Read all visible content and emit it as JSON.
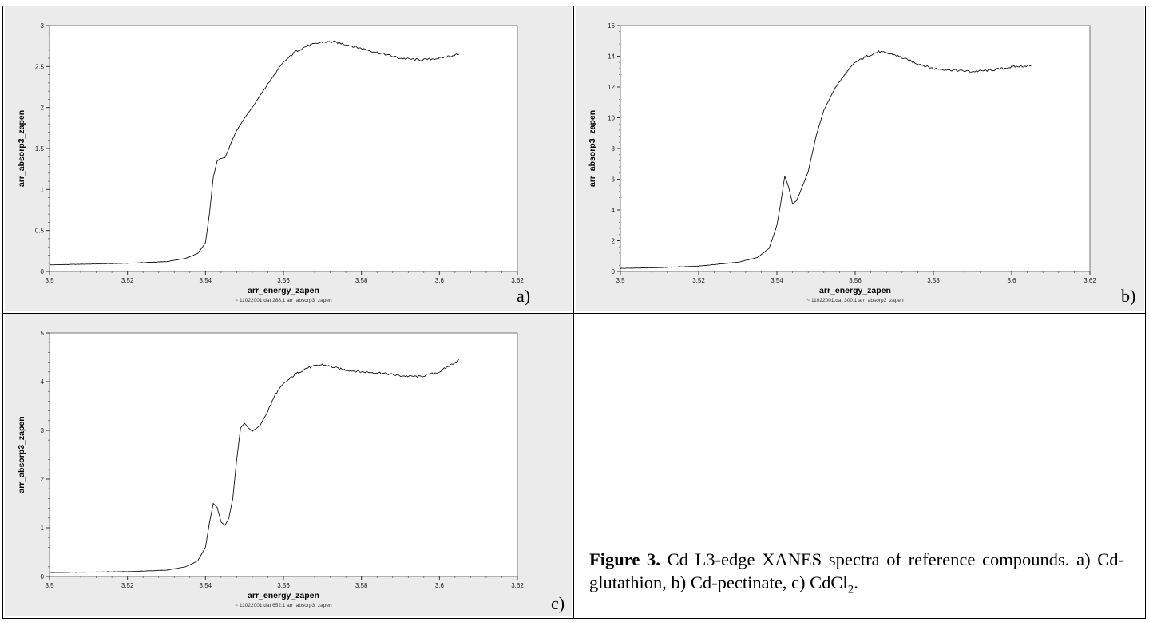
{
  "figure": {
    "caption_label": "Figure 3.",
    "caption_text_1": " Cd L3-edge XANES spectra of reference compounds. a) Cd-glutathion, b) Cd-pectinate, c) CdCl",
    "caption_subscript": "2",
    "caption_text_2": "."
  },
  "colors": {
    "plot_bg": "#ffffff",
    "frame_bg": "#ebebeb",
    "line": "#111111",
    "axis": "#777777"
  },
  "chart_data": [
    {
      "panel": "a)",
      "type": "line",
      "xlabel": "arr_energy_zapen",
      "ylabel": "arr_absorp3_zapen",
      "legend": "~ 11022001.dat 288.1 arr_absorp3_zapen",
      "xlim": [
        3.5,
        3.62
      ],
      "ylim": [
        0,
        3
      ],
      "xticks": [
        3.5,
        3.52,
        3.54,
        3.56,
        3.58,
        3.6,
        3.62
      ],
      "xtick_labels": [
        "3.5",
        "3.52",
        "3.54",
        "3.56",
        "3.58",
        "3.6",
        "3.62"
      ],
      "yticks": [
        0,
        0.5,
        1,
        1.5,
        2,
        2.5,
        3
      ],
      "ytick_labels": [
        "0",
        "0.5",
        "1",
        "1.5",
        "2",
        "2.5",
        "3"
      ],
      "series": [
        {
          "x": [
            3.5,
            3.51,
            3.52,
            3.53,
            3.535,
            3.538,
            3.54,
            3.541,
            3.542,
            3.543,
            3.544,
            3.545,
            3.546,
            3.547,
            3.548,
            3.55,
            3.552,
            3.555,
            3.558,
            3.56,
            3.563,
            3.566,
            3.57,
            3.573,
            3.576,
            3.58,
            3.585,
            3.59,
            3.595,
            3.6,
            3.605
          ],
          "y": [
            0.08,
            0.09,
            0.1,
            0.12,
            0.16,
            0.22,
            0.35,
            0.7,
            1.15,
            1.35,
            1.38,
            1.39,
            1.5,
            1.62,
            1.72,
            1.87,
            2.0,
            2.22,
            2.42,
            2.55,
            2.68,
            2.75,
            2.8,
            2.8,
            2.77,
            2.72,
            2.66,
            2.6,
            2.58,
            2.6,
            2.65
          ]
        }
      ]
    },
    {
      "panel": "b)",
      "type": "line",
      "xlabel": "arr_energy_zapen",
      "ylabel": "arr_absorp3_zapen",
      "legend": "~ 11022001.dat 300.1 arr_absorp3_zapen",
      "xlim": [
        3.5,
        3.62
      ],
      "ylim": [
        0,
        16
      ],
      "xticks": [
        3.5,
        3.52,
        3.54,
        3.56,
        3.58,
        3.6,
        3.62
      ],
      "xtick_labels": [
        "3.5",
        "3.52",
        "3.54",
        "3.56",
        "3.58",
        "3.6",
        "3.62"
      ],
      "yticks": [
        0,
        2,
        4,
        6,
        8,
        10,
        12,
        14,
        16
      ],
      "ytick_labels": [
        "0",
        "2",
        "4",
        "6",
        "8",
        "10",
        "12",
        "14",
        "16"
      ],
      "series": [
        {
          "x": [
            3.5,
            3.51,
            3.52,
            3.53,
            3.535,
            3.538,
            3.54,
            3.541,
            3.542,
            3.543,
            3.544,
            3.545,
            3.546,
            3.548,
            3.55,
            3.552,
            3.555,
            3.558,
            3.56,
            3.563,
            3.566,
            3.57,
            3.575,
            3.58,
            3.585,
            3.59,
            3.595,
            3.6,
            3.605
          ],
          "y": [
            0.2,
            0.25,
            0.35,
            0.6,
            0.9,
            1.5,
            3.0,
            4.5,
            6.2,
            5.5,
            4.4,
            4.6,
            5.2,
            6.5,
            8.8,
            10.5,
            12.0,
            13.0,
            13.6,
            14.0,
            14.3,
            14.1,
            13.6,
            13.2,
            13.1,
            13.0,
            13.1,
            13.3,
            13.4
          ]
        }
      ]
    },
    {
      "panel": "c)",
      "type": "line",
      "xlabel": "arr_energy_zapen",
      "ylabel": "arr_absorp3_zapen",
      "legend": "~ 11022001.dat 652.1 arr_absorp3_zapen",
      "xlim": [
        3.5,
        3.62
      ],
      "ylim": [
        0,
        5
      ],
      "xticks": [
        3.5,
        3.52,
        3.54,
        3.56,
        3.58,
        3.6,
        3.62
      ],
      "xtick_labels": [
        "3.5",
        "3.52",
        "3.54",
        "3.56",
        "3.58",
        "3.6",
        "3.62"
      ],
      "yticks": [
        0,
        1,
        2,
        3,
        4,
        5
      ],
      "ytick_labels": [
        "0",
        "1",
        "2",
        "3",
        "4",
        "5"
      ],
      "series": [
        {
          "x": [
            3.5,
            3.51,
            3.52,
            3.53,
            3.535,
            3.538,
            3.54,
            3.541,
            3.542,
            3.543,
            3.544,
            3.545,
            3.546,
            3.547,
            3.548,
            3.549,
            3.55,
            3.551,
            3.552,
            3.554,
            3.556,
            3.558,
            3.56,
            3.563,
            3.566,
            3.57,
            3.575,
            3.58,
            3.585,
            3.59,
            3.595,
            3.6,
            3.605
          ],
          "y": [
            0.08,
            0.09,
            0.1,
            0.13,
            0.2,
            0.32,
            0.6,
            1.1,
            1.5,
            1.42,
            1.12,
            1.05,
            1.2,
            1.6,
            2.4,
            3.05,
            3.15,
            3.05,
            2.98,
            3.1,
            3.4,
            3.75,
            3.95,
            4.15,
            4.28,
            4.35,
            4.25,
            4.2,
            4.18,
            4.12,
            4.1,
            4.2,
            4.45
          ]
        }
      ]
    }
  ]
}
